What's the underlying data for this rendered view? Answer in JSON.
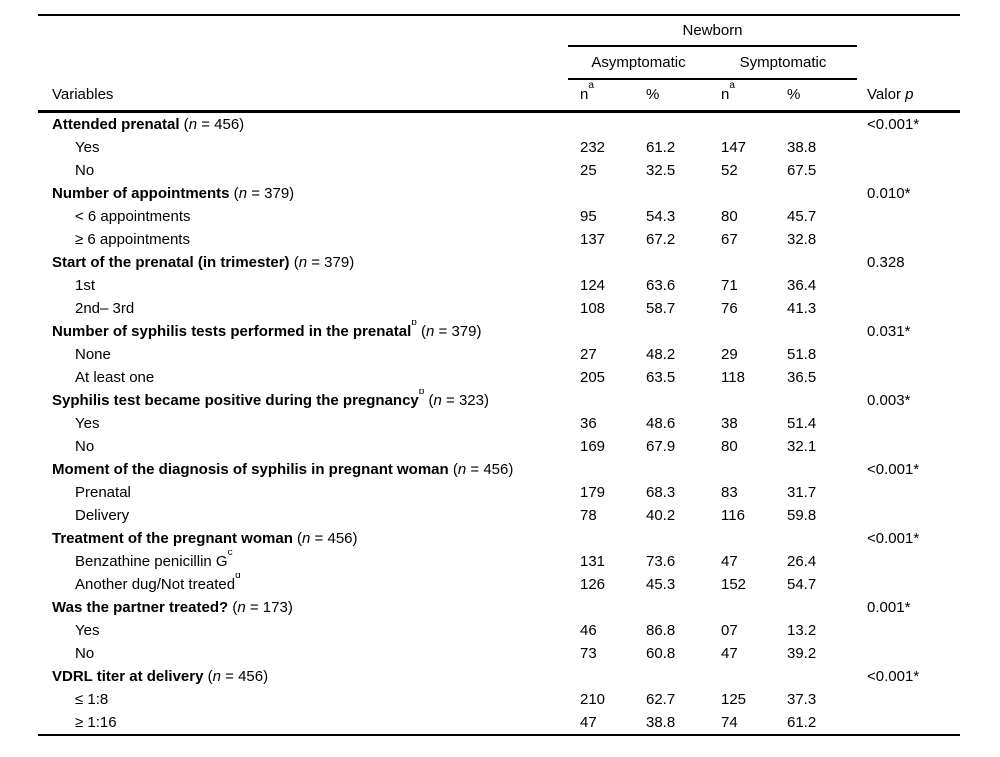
{
  "page": {
    "background": "#ffffff",
    "text_color": "#000000",
    "rule_color": "#000000"
  },
  "table": {
    "header": {
      "variables": "Variables",
      "newborn": "Newborn",
      "asymptomatic": "Asymptomatic",
      "symptomatic": "Symptomatic",
      "n": "n",
      "n_sup": "a",
      "percent": "%",
      "valor": "Valor ",
      "valor_p_italic": "p"
    },
    "groups": [
      {
        "label": "Attended prenatal",
        "sup": "",
        "n": "456",
        "p": "<0.001*",
        "rows": [
          {
            "label": "Yes",
            "sup": "",
            "n1": "232",
            "p1": "61.2",
            "n2": "147",
            "p2": "38.8"
          },
          {
            "label": "No",
            "sup": "",
            "n1": "25",
            "p1": "32.5",
            "n2": "52",
            "p2": "67.5"
          }
        ]
      },
      {
        "label": "Number of appointments",
        "sup": "",
        "n": "379",
        "p": "0.010*",
        "rows": [
          {
            "label": "< 6 appointments",
            "sup": "",
            "n1": "95",
            "p1": "54.3",
            "n2": "80",
            "p2": "45.7"
          },
          {
            "label": "≥ 6 appointments",
            "sup": "",
            "n1": "137",
            "p1": "67.2",
            "n2": "67",
            "p2": "32.8"
          }
        ]
      },
      {
        "label": "Start of the prenatal (in trimester)",
        "sup": "",
        "n": "379",
        "p": "0.328",
        "rows": [
          {
            "label": "1st",
            "sup": "",
            "n1": "124",
            "p1": "63.6",
            "n2": "71",
            "p2": "36.4"
          },
          {
            "label": "2nd– 3rd",
            "sup": "",
            "n1": "108",
            "p1": "58.7",
            "n2": "76",
            "p2": "41.3"
          }
        ]
      },
      {
        "label": "Number of syphilis tests performed in the prenatal",
        "sup": "b",
        "n": "379",
        "p": "0.031*",
        "rows": [
          {
            "label": "None",
            "sup": "",
            "n1": "27",
            "p1": "48.2",
            "n2": "29",
            "p2": "51.8"
          },
          {
            "label": "At least one",
            "sup": "",
            "n1": "205",
            "p1": "63.5",
            "n2": "118",
            "p2": "36.5"
          }
        ]
      },
      {
        "label": "Syphilis test became positive during the pregnancy",
        "sup": "b",
        "n": "323",
        "p": "0.003*",
        "rows": [
          {
            "label": "Yes",
            "sup": "",
            "n1": "36",
            "p1": "48.6",
            "n2": "38",
            "p2": "51.4"
          },
          {
            "label": "No",
            "sup": "",
            "n1": "169",
            "p1": "67.9",
            "n2": "80",
            "p2": "32.1"
          }
        ]
      },
      {
        "label": "Moment of the diagnosis of syphilis in pregnant woman",
        "sup": "",
        "n": "456",
        "p": "<0.001*",
        "rows": [
          {
            "label": "Prenatal",
            "sup": "",
            "n1": "179",
            "p1": "68.3",
            "n2": "83",
            "p2": "31.7"
          },
          {
            "label": "Delivery",
            "sup": "",
            "n1": "78",
            "p1": "40.2",
            "n2": "116",
            "p2": "59.8"
          }
        ]
      },
      {
        "label": "Treatment of the pregnant woman",
        "sup": "",
        "n": "456",
        "p": "<0.001*",
        "rows": [
          {
            "label": "Benzathine penicillin G",
            "sup": "c",
            "n1": "131",
            "p1": "73.6",
            "n2": "47",
            "p2": "26.4"
          },
          {
            "label": "Another dug/Not treated",
            "sup": "d",
            "n1": "126",
            "p1": "45.3",
            "n2": "152",
            "p2": "54.7"
          }
        ]
      },
      {
        "label": "Was the partner treated?",
        "sup": "",
        "n": "173",
        "p": "0.001*",
        "rows": [
          {
            "label": "Yes",
            "sup": "",
            "n1": "46",
            "p1": "86.8",
            "n2": "07",
            "p2": "13.2"
          },
          {
            "label": "No",
            "sup": "",
            "n1": "73",
            "p1": "60.8",
            "n2": "47",
            "p2": "39.2"
          }
        ]
      },
      {
        "label": "VDRL titer at delivery",
        "sup": "",
        "n": "456",
        "p": "<0.001*",
        "rows": [
          {
            "label": "≤ 1:8",
            "sup": "",
            "n1": "210",
            "p1": "62.7",
            "n2": "125",
            "p2": "37.3"
          },
          {
            "label": "≥ 1:16",
            "sup": "",
            "n1": "47",
            "p1": "38.8",
            "n2": "74",
            "p2": "61.2"
          }
        ]
      }
    ]
  }
}
